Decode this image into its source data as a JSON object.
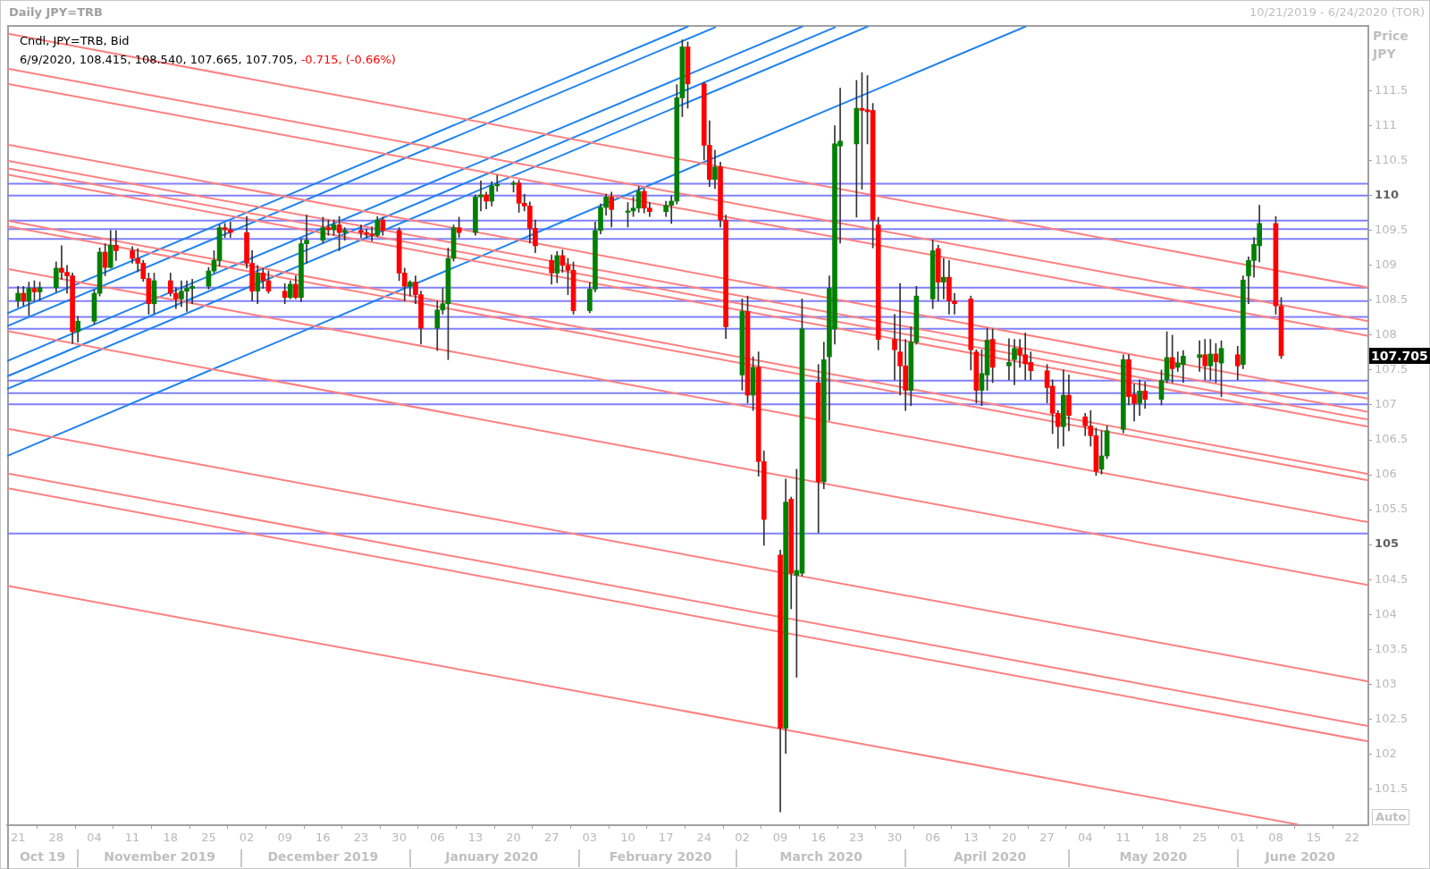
{
  "chart_data": {
    "type": "candlestick",
    "title": "Daily JPY=TRB",
    "subtitle": "10/21/2019 - 6/24/2020 (TOR)",
    "ylabel": "Price JPY",
    "x": [
      "2019-10-21",
      "2019-10-22",
      "2019-10-23",
      "2019-10-24",
      "2019-10-25",
      "2019-10-28",
      "2019-10-29",
      "2019-10-30",
      "2019-10-31",
      "2019-11-01",
      "2019-11-04",
      "2019-11-05",
      "2019-11-06",
      "2019-11-07",
      "2019-11-08",
      "2019-11-11",
      "2019-11-12",
      "2019-11-13",
      "2019-11-14",
      "2019-11-15",
      "2019-11-18",
      "2019-11-19",
      "2019-11-20",
      "2019-11-21",
      "2019-11-22",
      "2019-11-25",
      "2019-11-26",
      "2019-11-27",
      "2019-11-28",
      "2019-11-29",
      "2019-12-02",
      "2019-12-03",
      "2019-12-04",
      "2019-12-05",
      "2019-12-06",
      "2019-12-09",
      "2019-12-10",
      "2019-12-11",
      "2019-12-12",
      "2019-12-13",
      "2019-12-16",
      "2019-12-17",
      "2019-12-18",
      "2019-12-19",
      "2019-12-20",
      "2019-12-23",
      "2019-12-24",
      "2019-12-25",
      "2019-12-26",
      "2019-12-27",
      "2019-12-30",
      "2019-12-31",
      "2020-01-01",
      "2020-01-02",
      "2020-01-03",
      "2020-01-06",
      "2020-01-07",
      "2020-01-08",
      "2020-01-09",
      "2020-01-10",
      "2020-01-13",
      "2020-01-14",
      "2020-01-15",
      "2020-01-16",
      "2020-01-17",
      "2020-01-20",
      "2020-01-21",
      "2020-01-22",
      "2020-01-23",
      "2020-01-24",
      "2020-01-27",
      "2020-01-28",
      "2020-01-29",
      "2020-01-30",
      "2020-01-31",
      "2020-02-03",
      "2020-02-04",
      "2020-02-05",
      "2020-02-06",
      "2020-02-07",
      "2020-02-10",
      "2020-02-11",
      "2020-02-12",
      "2020-02-13",
      "2020-02-14",
      "2020-02-17",
      "2020-02-18",
      "2020-02-19",
      "2020-02-20",
      "2020-02-21",
      "2020-02-24",
      "2020-02-25",
      "2020-02-26",
      "2020-02-27",
      "2020-02-28",
      "2020-03-02",
      "2020-03-03",
      "2020-03-04",
      "2020-03-05",
      "2020-03-06",
      "2020-03-09",
      "2020-03-10",
      "2020-03-11",
      "2020-03-12",
      "2020-03-13",
      "2020-03-16",
      "2020-03-17",
      "2020-03-18",
      "2020-03-19",
      "2020-03-20",
      "2020-03-23",
      "2020-03-24",
      "2020-03-25",
      "2020-03-26",
      "2020-03-27",
      "2020-03-30",
      "2020-03-31",
      "2020-04-01",
      "2020-04-02",
      "2020-04-03",
      "2020-04-06",
      "2020-04-07",
      "2020-04-08",
      "2020-04-09",
      "2020-04-10",
      "2020-04-13",
      "2020-04-14",
      "2020-04-15",
      "2020-04-16",
      "2020-04-17",
      "2020-04-20",
      "2020-04-21",
      "2020-04-22",
      "2020-04-23",
      "2020-04-24",
      "2020-04-27",
      "2020-04-28",
      "2020-04-29",
      "2020-04-30",
      "2020-05-01",
      "2020-05-04",
      "2020-05-05",
      "2020-05-06",
      "2020-05-07",
      "2020-05-08",
      "2020-05-11",
      "2020-05-12",
      "2020-05-13",
      "2020-05-14",
      "2020-05-15",
      "2020-05-18",
      "2020-05-19",
      "2020-05-20",
      "2020-05-21",
      "2020-05-22",
      "2020-05-25",
      "2020-05-26",
      "2020-05-27",
      "2020-05-28",
      "2020-05-29",
      "2020-06-01",
      "2020-06-02",
      "2020-06-03",
      "2020-06-04",
      "2020-06-05",
      "2020-06-08",
      "2020-06-09"
    ],
    "ohlc": [
      [
        108.49,
        108.7,
        108.4,
        108.6
      ],
      [
        108.6,
        108.7,
        108.42,
        108.49
      ],
      [
        108.49,
        108.76,
        108.28,
        108.67
      ],
      [
        108.67,
        108.78,
        108.49,
        108.62
      ],
      [
        108.62,
        108.76,
        108.5,
        108.68
      ],
      [
        108.68,
        109.05,
        108.62,
        108.96
      ],
      [
        108.96,
        109.28,
        108.8,
        108.9
      ],
      [
        108.9,
        109.0,
        108.6,
        108.85
      ],
      [
        108.85,
        108.89,
        107.88,
        108.05
      ],
      [
        108.05,
        108.27,
        107.9,
        108.2
      ],
      [
        108.2,
        108.65,
        108.16,
        108.6
      ],
      [
        108.6,
        109.25,
        108.56,
        109.19
      ],
      [
        109.19,
        109.31,
        108.85,
        108.97
      ],
      [
        108.97,
        109.5,
        108.96,
        109.29
      ],
      [
        109.29,
        109.5,
        109.07,
        109.21
      ],
      [
        109.21,
        109.27,
        109.03,
        109.1
      ],
      [
        109.1,
        109.24,
        108.91,
        109.03
      ],
      [
        109.03,
        109.07,
        108.77,
        108.81
      ],
      [
        108.81,
        108.89,
        108.3,
        108.45
      ],
      [
        108.45,
        108.89,
        108.31,
        108.78
      ],
      [
        108.78,
        108.89,
        108.56,
        108.6
      ],
      [
        108.6,
        108.68,
        108.38,
        108.52
      ],
      [
        108.52,
        108.78,
        108.41,
        108.63
      ],
      [
        108.63,
        108.78,
        108.34,
        108.67
      ],
      [
        108.67,
        108.8,
        108.45,
        108.7
      ],
      [
        108.7,
        108.97,
        108.66,
        108.92
      ],
      [
        108.92,
        109.21,
        108.89,
        109.07
      ],
      [
        109.07,
        109.58,
        108.99,
        109.54
      ],
      [
        109.54,
        109.6,
        109.4,
        109.51
      ],
      [
        109.51,
        109.62,
        109.4,
        109.47
      ],
      [
        109.47,
        109.7,
        108.96,
        109.03
      ],
      [
        109.03,
        109.21,
        108.49,
        108.63
      ],
      [
        108.63,
        109.0,
        108.45,
        108.89
      ],
      [
        108.89,
        108.96,
        108.67,
        108.78
      ],
      [
        108.78,
        108.92,
        108.6,
        108.63
      ],
      [
        108.63,
        108.74,
        108.45,
        108.54
      ],
      [
        108.54,
        108.78,
        108.52,
        108.73
      ],
      [
        108.73,
        108.85,
        108.52,
        108.54
      ],
      [
        108.54,
        109.38,
        108.48,
        109.31
      ],
      [
        109.31,
        109.72,
        109.03,
        109.36
      ],
      [
        109.36,
        109.69,
        109.32,
        109.54
      ],
      [
        109.54,
        109.65,
        109.43,
        109.51
      ],
      [
        109.51,
        109.65,
        109.43,
        109.58
      ],
      [
        109.58,
        109.7,
        109.21,
        109.47
      ],
      [
        109.47,
        109.54,
        109.36,
        109.5
      ],
      [
        109.5,
        109.58,
        109.4,
        109.47
      ],
      [
        109.47,
        109.52,
        109.4,
        109.45
      ],
      [
        109.45,
        109.55,
        109.35,
        109.43
      ],
      [
        109.43,
        109.7,
        109.41,
        109.65
      ],
      [
        109.65,
        109.69,
        109.43,
        109.5
      ],
      [
        109.5,
        109.54,
        108.78,
        108.89
      ],
      [
        108.89,
        108.96,
        108.49,
        108.7
      ],
      [
        108.7,
        108.78,
        108.56,
        108.76
      ],
      [
        108.76,
        108.85,
        108.45,
        108.58
      ],
      [
        108.58,
        108.63,
        107.87,
        108.1
      ],
      [
        108.1,
        108.49,
        107.78,
        108.36
      ],
      [
        108.36,
        108.67,
        108.3,
        108.45
      ],
      [
        108.45,
        109.25,
        107.65,
        109.1
      ],
      [
        109.1,
        109.58,
        109.06,
        109.54
      ],
      [
        109.54,
        109.69,
        109.4,
        109.47
      ],
      [
        109.47,
        110.01,
        109.43,
        109.98
      ],
      [
        109.98,
        110.21,
        109.78,
        110.01
      ],
      [
        110.01,
        110.05,
        109.81,
        109.92
      ],
      [
        109.92,
        110.2,
        109.85,
        110.14
      ],
      [
        110.14,
        110.29,
        110.06,
        110.16
      ],
      [
        110.16,
        110.21,
        110.05,
        110.18
      ],
      [
        110.18,
        110.22,
        109.76,
        109.89
      ],
      [
        109.89,
        110.02,
        109.78,
        109.85
      ],
      [
        109.85,
        109.91,
        109.32,
        109.53
      ],
      [
        109.53,
        109.65,
        109.18,
        109.28
      ],
      [
        109.07,
        109.15,
        108.73,
        108.89
      ],
      [
        108.89,
        109.2,
        108.75,
        109.14
      ],
      [
        109.14,
        109.22,
        108.9,
        109.0
      ],
      [
        109.0,
        109.1,
        108.58,
        108.93
      ],
      [
        108.93,
        109.05,
        108.3,
        108.35
      ],
      [
        108.35,
        108.75,
        108.32,
        108.66
      ],
      [
        108.66,
        109.62,
        108.62,
        109.5
      ],
      [
        109.5,
        109.88,
        109.45,
        109.83
      ],
      [
        109.83,
        110.02,
        109.72,
        109.98
      ],
      [
        109.98,
        110.05,
        109.55,
        109.8
      ],
      [
        109.76,
        109.9,
        109.55,
        109.78
      ],
      [
        109.78,
        109.98,
        109.7,
        109.82
      ],
      [
        109.82,
        110.13,
        109.76,
        110.06
      ],
      [
        110.06,
        110.1,
        109.75,
        109.82
      ],
      [
        109.82,
        109.9,
        109.7,
        109.77
      ],
      [
        109.77,
        109.92,
        109.7,
        109.86
      ],
      [
        109.86,
        110.0,
        109.6,
        109.92
      ],
      [
        109.92,
        111.59,
        109.88,
        111.4
      ],
      [
        111.4,
        112.23,
        111.13,
        112.13
      ],
      [
        112.13,
        112.2,
        111.25,
        111.6
      ],
      [
        111.6,
        111.62,
        110.51,
        110.72
      ],
      [
        110.72,
        111.07,
        110.13,
        110.23
      ],
      [
        110.23,
        110.65,
        110.1,
        110.41
      ],
      [
        110.41,
        110.48,
        109.55,
        109.65
      ],
      [
        109.65,
        109.72,
        107.95,
        108.12
      ],
      [
        107.43,
        108.52,
        107.21,
        108.34
      ],
      [
        108.34,
        108.56,
        107.03,
        107.14
      ],
      [
        107.14,
        107.69,
        106.92,
        107.54
      ],
      [
        107.54,
        107.76,
        105.98,
        106.19
      ],
      [
        106.19,
        106.34,
        104.99,
        105.36
      ],
      [
        104.85,
        104.92,
        101.17,
        102.37
      ],
      [
        102.37,
        105.94,
        102.01,
        105.61
      ],
      [
        105.65,
        105.68,
        104.08,
        104.59
      ],
      [
        104.56,
        106.08,
        103.1,
        104.63
      ],
      [
        104.59,
        108.52,
        104.55,
        108.09
      ],
      [
        107.32,
        107.58,
        105.17,
        105.9
      ],
      [
        105.9,
        107.9,
        105.8,
        107.65
      ],
      [
        107.69,
        108.85,
        106.78,
        108.67
      ],
      [
        108.09,
        111.0,
        107.87,
        110.74
      ],
      [
        110.71,
        111.54,
        109.32,
        110.78
      ],
      [
        110.74,
        111.65,
        109.69,
        111.25
      ],
      [
        111.25,
        111.76,
        110.09,
        111.22
      ],
      [
        111.23,
        111.72,
        110.74,
        111.2
      ],
      [
        111.22,
        111.32,
        109.25,
        109.65
      ],
      [
        109.58,
        109.69,
        107.79,
        107.94
      ],
      [
        107.94,
        108.3,
        107.36,
        107.79
      ],
      [
        107.76,
        108.74,
        107.14,
        107.56
      ],
      [
        107.56,
        107.94,
        106.92,
        107.21
      ],
      [
        107.21,
        108.12,
        106.99,
        107.9
      ],
      [
        107.9,
        108.7,
        107.87,
        108.56
      ],
      [
        108.52,
        109.36,
        108.38,
        109.21
      ],
      [
        109.24,
        109.29,
        108.49,
        108.76
      ],
      [
        108.76,
        109.1,
        108.52,
        108.83
      ],
      [
        108.83,
        109.07,
        108.3,
        108.49
      ],
      [
        108.49,
        108.6,
        108.3,
        108.45
      ],
      [
        108.52,
        108.56,
        107.5,
        107.79
      ],
      [
        107.76,
        107.79,
        107.03,
        107.21
      ],
      [
        107.21,
        107.79,
        106.99,
        107.45
      ],
      [
        107.43,
        108.1,
        107.21,
        107.93
      ],
      [
        107.94,
        108.09,
        107.32,
        107.54
      ],
      [
        107.56,
        107.95,
        107.36,
        107.61
      ],
      [
        107.65,
        107.94,
        107.29,
        107.81
      ],
      [
        107.81,
        107.94,
        107.54,
        107.72
      ],
      [
        107.72,
        108.03,
        107.36,
        107.59
      ],
      [
        107.61,
        107.76,
        107.36,
        107.49
      ],
      [
        107.49,
        107.58,
        107.03,
        107.25
      ],
      [
        107.27,
        107.36,
        106.59,
        106.88
      ],
      [
        106.88,
        106.92,
        106.38,
        106.69
      ],
      [
        106.69,
        107.5,
        106.41,
        107.14
      ],
      [
        107.14,
        107.43,
        106.63,
        106.85
      ],
      [
        106.83,
        106.88,
        106.56,
        106.7
      ],
      [
        106.7,
        106.92,
        106.41,
        106.56
      ],
      [
        106.56,
        106.67,
        105.99,
        106.05
      ],
      [
        106.08,
        106.63,
        106.01,
        106.27
      ],
      [
        106.27,
        106.7,
        106.23,
        106.63
      ],
      [
        106.65,
        107.72,
        106.6,
        107.65
      ],
      [
        107.65,
        107.72,
        107.0,
        107.12
      ],
      [
        107.15,
        107.3,
        106.77,
        107.02
      ],
      [
        107.02,
        107.36,
        106.85,
        107.2
      ],
      [
        107.2,
        107.33,
        106.95,
        107.08
      ],
      [
        107.08,
        107.5,
        107.0,
        107.35
      ],
      [
        107.36,
        108.05,
        107.32,
        107.68
      ],
      [
        107.68,
        108.0,
        107.32,
        107.52
      ],
      [
        107.54,
        107.76,
        107.48,
        107.6
      ],
      [
        107.58,
        107.78,
        107.32,
        107.7
      ],
      [
        107.68,
        107.92,
        107.48,
        107.72
      ],
      [
        107.72,
        107.94,
        107.36,
        107.56
      ],
      [
        107.56,
        107.94,
        107.36,
        107.73
      ],
      [
        107.73,
        107.88,
        107.32,
        107.62
      ],
      [
        107.6,
        107.92,
        107.12,
        107.81
      ],
      [
        107.72,
        107.84,
        107.36,
        107.56
      ],
      [
        107.58,
        108.85,
        107.52,
        108.79
      ],
      [
        108.85,
        109.12,
        108.45,
        109.07
      ],
      [
        109.07,
        109.4,
        108.83,
        109.3
      ],
      [
        109.28,
        109.86,
        109.05,
        109.6
      ],
      [
        109.6,
        109.7,
        108.3,
        108.42
      ],
      [
        108.415,
        108.54,
        107.665,
        107.705
      ]
    ],
    "colors": [
      "#008000",
      "#ff0000",
      "#008000",
      "#ff0000",
      "#008000",
      "#008000",
      "#ff0000",
      "#ff0000",
      "#ff0000",
      "#008000",
      "#008000",
      "#008000",
      "#ff0000",
      "#008000",
      "#ff0000",
      "#ff0000",
      "#ff0000",
      "#ff0000",
      "#ff0000",
      "#008000",
      "#ff0000",
      "#ff0000",
      "#008000",
      "#008000",
      "#008000",
      "#008000",
      "#008000",
      "#008000",
      "#ff0000",
      "#ff0000",
      "#ff0000",
      "#ff0000",
      "#008000",
      "#ff0000",
      "#ff0000",
      "#ff0000",
      "#008000",
      "#ff0000",
      "#008000",
      "#008000",
      "#008000",
      "#ff0000",
      "#008000",
      "#ff0000",
      "#008000",
      "#ff0000",
      "#ff0000",
      "#ff0000",
      "#008000",
      "#ff0000",
      "#ff0000",
      "#ff0000",
      "#008000",
      "#ff0000",
      "#ff0000",
      "#008000",
      "#008000",
      "#008000",
      "#008000",
      "#ff0000",
      "#008000",
      "#008000",
      "#ff0000",
      "#008000",
      "#008000",
      "#008000",
      "#ff0000",
      "#ff0000",
      "#ff0000",
      "#ff0000",
      "#ff0000",
      "#008000",
      "#ff0000",
      "#ff0000",
      "#ff0000",
      "#008000",
      "#008000",
      "#008000",
      "#008000",
      "#ff0000",
      "#008000",
      "#008000",
      "#008000",
      "#ff0000",
      "#ff0000",
      "#008000",
      "#008000",
      "#008000",
      "#008000",
      "#ff0000",
      "#ff0000",
      "#ff0000",
      "#008000",
      "#ff0000",
      "#ff0000",
      "#008000",
      "#ff0000",
      "#008000",
      "#ff0000",
      "#ff0000",
      "#ff0000",
      "#008000",
      "#ff0000",
      "#008000",
      "#008000",
      "#ff0000",
      "#008000",
      "#008000",
      "#008000",
      "#008000",
      "#008000",
      "#ff0000",
      "#ff0000",
      "#ff0000",
      "#ff0000",
      "#ff0000",
      "#ff0000",
      "#ff0000",
      "#008000",
      "#008000",
      "#008000",
      "#ff0000",
      "#008000",
      "#ff0000",
      "#ff0000",
      "#ff0000",
      "#ff0000",
      "#008000",
      "#008000",
      "#ff0000",
      "#008000",
      "#008000",
      "#ff0000",
      "#ff0000",
      "#ff0000",
      "#ff0000",
      "#ff0000",
      "#ff0000",
      "#008000",
      "#ff0000",
      "#ff0000",
      "#ff0000",
      "#ff0000",
      "#008000",
      "#008000",
      "#008000",
      "#ff0000",
      "#ff0000",
      "#008000",
      "#ff0000",
      "#008000",
      "#008000",
      "#ff0000",
      "#008000",
      "#008000",
      "#008000",
      "#ff0000",
      "#008000",
      "#ff0000",
      "#008000",
      "#ff0000",
      "#008000",
      "#008000",
      "#008000",
      "#008000",
      "#ff0000",
      "#ff0000"
    ],
    "series": [
      {
        "type": "line",
        "color": "#ff8080",
        "x": [
          "2019-10-19",
          "2020-06-25"
        ],
        "values": [
          112.32,
          108.68
        ]
      },
      {
        "type": "line",
        "color": "#ff8080",
        "x": [
          "2019-10-19",
          "2020-06-25"
        ],
        "values": [
          111.82,
          108.2
        ]
      },
      {
        "type": "line",
        "color": "#ff8080",
        "x": [
          "2019-10-19",
          "2020-06-25"
        ],
        "values": [
          111.6,
          107.99
        ]
      },
      {
        "type": "line",
        "color": "#ff8080",
        "x": [
          "2019-10-19",
          "2020-06-25"
        ],
        "values": [
          110.73,
          107.09
        ]
      },
      {
        "type": "line",
        "color": "#ff8080",
        "x": [
          "2019-10-19",
          "2020-06-25"
        ],
        "values": [
          110.5,
          106.9
        ]
      },
      {
        "type": "line",
        "color": "#ff8080",
        "x": [
          "2019-10-19",
          "2020-06-25"
        ],
        "values": [
          110.39,
          106.79
        ]
      },
      {
        "type": "line",
        "color": "#ff8080",
        "x": [
          "2019-10-19",
          "2020-06-25"
        ],
        "values": [
          110.3,
          106.69
        ]
      },
      {
        "type": "line",
        "color": "#ff8080",
        "x": [
          "2019-10-19",
          "2020-06-25"
        ],
        "values": [
          109.64,
          106.01
        ]
      },
      {
        "type": "line",
        "color": "#ff8080",
        "x": [
          "2019-10-19",
          "2020-06-25"
        ],
        "values": [
          109.56,
          105.92
        ]
      },
      {
        "type": "line",
        "color": "#ff8080",
        "x": [
          "2019-10-19",
          "2020-06-25"
        ],
        "values": [
          108.95,
          105.32
        ]
      },
      {
        "type": "line",
        "color": "#ff8080",
        "x": [
          "2019-10-19",
          "2020-06-25"
        ],
        "values": [
          108.06,
          104.42
        ]
      },
      {
        "type": "line",
        "color": "#ff8080",
        "x": [
          "2019-10-19",
          "2020-06-25"
        ],
        "values": [
          106.66,
          103.04
        ]
      },
      {
        "type": "line",
        "color": "#ff8080",
        "x": [
          "2019-10-19",
          "2020-06-25"
        ],
        "values": [
          106.02,
          102.4
        ]
      },
      {
        "type": "line",
        "color": "#ff8080",
        "x": [
          "2019-10-19",
          "2020-06-25"
        ],
        "values": [
          105.81,
          102.18
        ]
      },
      {
        "type": "line",
        "color": "#ff8080",
        "x": [
          "2019-10-19",
          "2020-06-12"
        ],
        "values": [
          104.41,
          100.99
        ]
      },
      {
        "type": "line",
        "color": "#1e82f0",
        "x": [
          "2019-10-19",
          "2020-02-21"
        ],
        "values": [
          108.31,
          112.42
        ]
      },
      {
        "type": "line",
        "color": "#1e82f0",
        "x": [
          "2019-10-19",
          "2020-02-26"
        ],
        "values": [
          108.13,
          112.41
        ]
      },
      {
        "type": "line",
        "color": "#1e82f0",
        "x": [
          "2019-10-19",
          "2020-03-13"
        ],
        "values": [
          107.63,
          112.42
        ]
      },
      {
        "type": "line",
        "color": "#1e82f0",
        "x": [
          "2019-10-19",
          "2020-03-19"
        ],
        "values": [
          107.41,
          112.41
        ]
      },
      {
        "type": "line",
        "color": "#1e82f0",
        "x": [
          "2019-10-19",
          "2020-03-25"
        ],
        "values": [
          107.23,
          112.42
        ]
      },
      {
        "type": "line",
        "color": "#1e82f0",
        "x": [
          "2019-10-19",
          "2020-04-23"
        ],
        "values": [
          106.27,
          112.42
        ]
      }
    ],
    "ref_lines": [
      {
        "axis": "y",
        "value": 110.17,
        "color": "#8080ff"
      },
      {
        "axis": "y",
        "value": 110.0,
        "color": "#8080ff"
      },
      {
        "axis": "y",
        "value": 109.64,
        "color": "#8080ff"
      },
      {
        "axis": "y",
        "value": 109.52,
        "color": "#8080ff"
      },
      {
        "axis": "y",
        "value": 109.38,
        "color": "#8080ff"
      },
      {
        "axis": "y",
        "value": 108.68,
        "color": "#8080ff"
      },
      {
        "axis": "y",
        "value": 108.49,
        "color": "#8080ff"
      },
      {
        "axis": "y",
        "value": 108.26,
        "color": "#8080ff"
      },
      {
        "axis": "y",
        "value": 108.09,
        "color": "#8080ff"
      },
      {
        "axis": "y",
        "value": 107.35,
        "color": "#8080ff"
      },
      {
        "axis": "y",
        "value": 107.17,
        "color": "#8080ff"
      },
      {
        "axis": "y",
        "value": 107.01,
        "color": "#8080ff"
      },
      {
        "axis": "y",
        "value": 105.16,
        "color": "#8080ff"
      }
    ],
    "xlim": [
      "2019-10-19",
      "2020-06-25"
    ],
    "xticks": [
      {
        "value": "2019-10-21",
        "label": "21"
      },
      {
        "value": "2019-10-28",
        "label": "28"
      },
      {
        "value": "2019-11-04",
        "label": "04"
      },
      {
        "value": "2019-11-11",
        "label": "11"
      },
      {
        "value": "2019-11-18",
        "label": "18"
      },
      {
        "value": "2019-11-25",
        "label": "25"
      },
      {
        "value": "2019-12-02",
        "label": "02"
      },
      {
        "value": "2019-12-09",
        "label": "09"
      },
      {
        "value": "2019-12-16",
        "label": "16"
      },
      {
        "value": "2019-12-23",
        "label": "23"
      },
      {
        "value": "2019-12-30",
        "label": "30"
      },
      {
        "value": "2020-01-06",
        "label": "06"
      },
      {
        "value": "2020-01-13",
        "label": "13"
      },
      {
        "value": "2020-01-20",
        "label": "20"
      },
      {
        "value": "2020-01-27",
        "label": "27"
      },
      {
        "value": "2020-02-03",
        "label": "03"
      },
      {
        "value": "2020-02-10",
        "label": "10"
      },
      {
        "value": "2020-02-17",
        "label": "17"
      },
      {
        "value": "2020-02-24",
        "label": "24"
      },
      {
        "value": "2020-03-02",
        "label": "02"
      },
      {
        "value": "2020-03-09",
        "label": "09"
      },
      {
        "value": "2020-03-16",
        "label": "16"
      },
      {
        "value": "2020-03-23",
        "label": "23"
      },
      {
        "value": "2020-03-30",
        "label": "30"
      },
      {
        "value": "2020-04-06",
        "label": "06"
      },
      {
        "value": "2020-04-13",
        "label": "13"
      },
      {
        "value": "2020-04-20",
        "label": "20"
      },
      {
        "value": "2020-04-27",
        "label": "27"
      },
      {
        "value": "2020-05-04",
        "label": "04"
      },
      {
        "value": "2020-05-11",
        "label": "11"
      },
      {
        "value": "2020-05-18",
        "label": "18"
      },
      {
        "value": "2020-05-25",
        "label": "25"
      },
      {
        "value": "2020-06-01",
        "label": "01"
      },
      {
        "value": "2020-06-08",
        "label": "08"
      },
      {
        "value": "2020-06-15",
        "label": "15"
      },
      {
        "value": "2020-06-22",
        "label": "22"
      }
    ],
    "x2lim": [
      "2019-10-19",
      "2020-06-25"
    ],
    "x2ticks": [
      {
        "value": "2019-10-25T12:00",
        "label": "Oct 19"
      },
      {
        "value": "2019-11-16",
        "label": "November 2019"
      },
      {
        "value": "2019-12-16",
        "label": "December 2019"
      },
      {
        "value": "2020-01-16",
        "label": "January 2020"
      },
      {
        "value": "2020-02-16",
        "label": "February 2020"
      },
      {
        "value": "2020-03-16T12:00",
        "label": "March 2020"
      },
      {
        "value": "2020-04-16T12:00",
        "label": "April 2020"
      },
      {
        "value": "2020-05-16T12:00",
        "label": "May 2020"
      },
      {
        "value": "2020-06-12T12:00",
        "label": "June 2020"
      }
    ],
    "ylim": [
      100.98,
      112.43
    ],
    "yticks": [
      101.5,
      102,
      102.5,
      103,
      103.5,
      104,
      104.5,
      105,
      105.5,
      106,
      106.5,
      107,
      107.5,
      108,
      108.5,
      109,
      109.5,
      110,
      110.5,
      111,
      111.5
    ],
    "annotations": [
      "Cndl, JPY=TRB, Bid",
      "6/9/2020, 108.415, 108.540, 107.665, 107.705,",
      "-0.715, (-0.66%)",
      "107.705",
      "Auto"
    ]
  }
}
